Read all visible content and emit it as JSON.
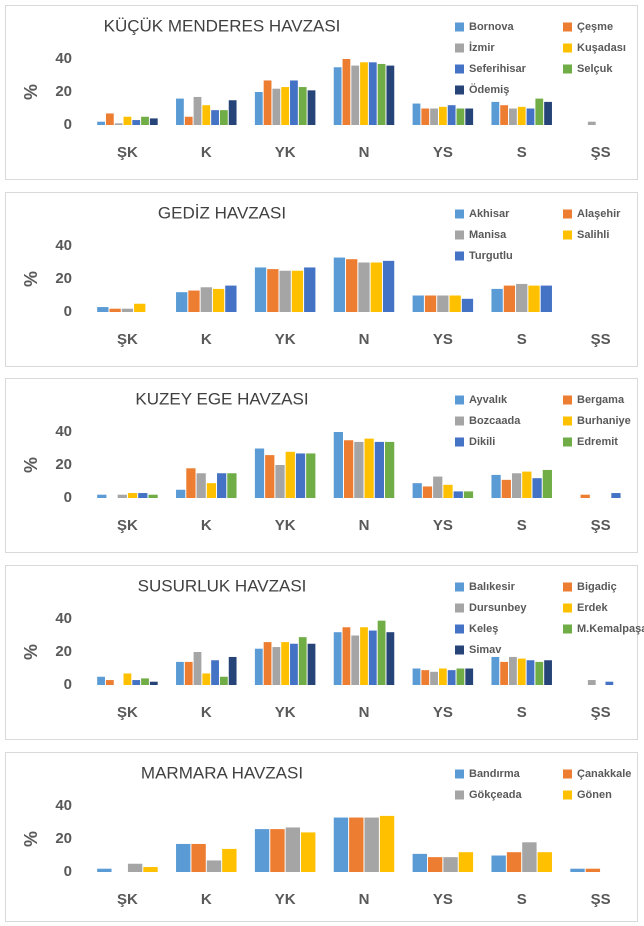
{
  "chart_data": [
    {
      "type": "bar",
      "title": "KÜÇÜK MENDERES HAVZASI",
      "ylabel": "%",
      "legend": "top-right",
      "categories": [
        "ŞK",
        "K",
        "YK",
        "N",
        "YS",
        "S",
        "ŞS"
      ],
      "ylim": [
        0,
        40
      ],
      "yticks": [
        0,
        20,
        40
      ],
      "series": [
        {
          "name": "Bornova",
          "color": "#5b9bd5",
          "values": [
            2,
            16,
            20,
            35,
            13,
            14,
            0
          ]
        },
        {
          "name": "Çeşme",
          "color": "#ed7d31",
          "values": [
            7,
            5,
            27,
            40,
            10,
            12,
            0
          ]
        },
        {
          "name": "İzmir",
          "color": "#a5a5a5",
          "values": [
            1,
            17,
            22,
            36,
            10,
            10,
            2
          ]
        },
        {
          "name": "Kuşadası",
          "color": "#ffc000",
          "values": [
            5,
            12,
            23,
            38,
            11,
            11,
            0
          ]
        },
        {
          "name": "Seferihisar",
          "color": "#4472c4",
          "values": [
            3,
            9,
            27,
            38,
            12,
            10,
            0
          ]
        },
        {
          "name": "Selçuk",
          "color": "#70ad47",
          "values": [
            5,
            9,
            23,
            37,
            10,
            16,
            0
          ]
        },
        {
          "name": "Ödemiş",
          "color": "#264478",
          "values": [
            4,
            15,
            21,
            36,
            10,
            14,
            0
          ]
        }
      ]
    },
    {
      "type": "bar",
      "title": "GEDİZ HAVZASI",
      "ylabel": "%",
      "legend": "top-right",
      "categories": [
        "ŞK",
        "K",
        "YK",
        "N",
        "YS",
        "S",
        "ŞS"
      ],
      "ylim": [
        0,
        40
      ],
      "yticks": [
        0,
        20,
        40
      ],
      "series": [
        {
          "name": "Akhisar",
          "color": "#5b9bd5",
          "values": [
            3,
            12,
            27,
            33,
            10,
            14,
            0
          ]
        },
        {
          "name": "Alaşehir",
          "color": "#ed7d31",
          "values": [
            2,
            13,
            26,
            32,
            10,
            16,
            0
          ]
        },
        {
          "name": "Manisa",
          "color": "#a5a5a5",
          "values": [
            2,
            15,
            25,
            30,
            10,
            17,
            0
          ]
        },
        {
          "name": "Salihli",
          "color": "#ffc000",
          "values": [
            5,
            14,
            25,
            30,
            10,
            16,
            0
          ]
        },
        {
          "name": "Turgutlu",
          "color": "#4472c4",
          "values": [
            0,
            16,
            27,
            31,
            8,
            16,
            0
          ]
        }
      ]
    },
    {
      "type": "bar",
      "title": "KUZEY EGE HAVZASI",
      "ylabel": "%",
      "legend": "top-right",
      "categories": [
        "ŞK",
        "K",
        "YK",
        "N",
        "YS",
        "S",
        "ŞS"
      ],
      "ylim": [
        0,
        40
      ],
      "yticks": [
        0,
        20,
        40
      ],
      "series": [
        {
          "name": "Ayvalık",
          "color": "#5b9bd5",
          "values": [
            2,
            5,
            30,
            40,
            9,
            14,
            0
          ]
        },
        {
          "name": "Bergama",
          "color": "#ed7d31",
          "values": [
            0,
            18,
            26,
            35,
            7,
            11,
            2
          ]
        },
        {
          "name": "Bozcaada",
          "color": "#a5a5a5",
          "values": [
            2,
            15,
            20,
            34,
            13,
            15,
            0
          ]
        },
        {
          "name": "Burhaniye",
          "color": "#ffc000",
          "values": [
            3,
            9,
            28,
            36,
            8,
            16,
            0
          ]
        },
        {
          "name": "Dikili",
          "color": "#4472c4",
          "values": [
            3,
            15,
            27,
            34,
            4,
            12,
            3
          ]
        },
        {
          "name": "Edremit",
          "color": "#70ad47",
          "values": [
            2,
            15,
            27,
            34,
            4,
            17,
            0
          ]
        }
      ]
    },
    {
      "type": "bar",
      "title": "SUSURLUK HAVZASI",
      "ylabel": "%",
      "legend": "top-right",
      "categories": [
        "ŞK",
        "K",
        "YK",
        "N",
        "YS",
        "S",
        "ŞS"
      ],
      "ylim": [
        0,
        40
      ],
      "yticks": [
        0,
        20,
        40
      ],
      "series": [
        {
          "name": "Balıkesir",
          "color": "#5b9bd5",
          "values": [
            5,
            14,
            22,
            32,
            10,
            17,
            0
          ]
        },
        {
          "name": "Bigadiç",
          "color": "#ed7d31",
          "values": [
            3,
            14,
            26,
            35,
            9,
            14,
            0
          ]
        },
        {
          "name": "Dursunbey",
          "color": "#a5a5a5",
          "values": [
            0,
            20,
            23,
            30,
            8,
            17,
            3
          ]
        },
        {
          "name": "Erdek",
          "color": "#ffc000",
          "values": [
            7,
            7,
            26,
            35,
            10,
            16,
            0
          ]
        },
        {
          "name": "Keleş",
          "color": "#4472c4",
          "values": [
            3,
            15,
            25,
            33,
            9,
            15,
            2
          ]
        },
        {
          "name": "M.Kemalpaşa",
          "color": "#70ad47",
          "values": [
            4,
            5,
            29,
            39,
            10,
            14,
            0
          ]
        },
        {
          "name": "Simav",
          "color": "#264478",
          "values": [
            2,
            17,
            25,
            32,
            10,
            15,
            0
          ]
        }
      ]
    },
    {
      "type": "bar",
      "title": "MARMARA HAVZASI",
      "ylabel": "%",
      "legend": "top-right",
      "categories": [
        "ŞK",
        "K",
        "YK",
        "N",
        "YS",
        "S",
        "ŞS"
      ],
      "ylim": [
        0,
        40
      ],
      "yticks": [
        0,
        20,
        40
      ],
      "series": [
        {
          "name": "Bandırma",
          "color": "#5b9bd5",
          "values": [
            2,
            17,
            26,
            33,
            11,
            10,
            2
          ]
        },
        {
          "name": "Çanakkale",
          "color": "#ed7d31",
          "values": [
            0,
            17,
            26,
            33,
            9,
            12,
            2
          ]
        },
        {
          "name": "Gökçeada",
          "color": "#a5a5a5",
          "values": [
            5,
            7,
            27,
            33,
            9,
            18,
            0
          ]
        },
        {
          "name": "Gönen",
          "color": "#ffc000",
          "values": [
            3,
            14,
            24,
            34,
            12,
            12,
            0
          ]
        }
      ]
    }
  ]
}
